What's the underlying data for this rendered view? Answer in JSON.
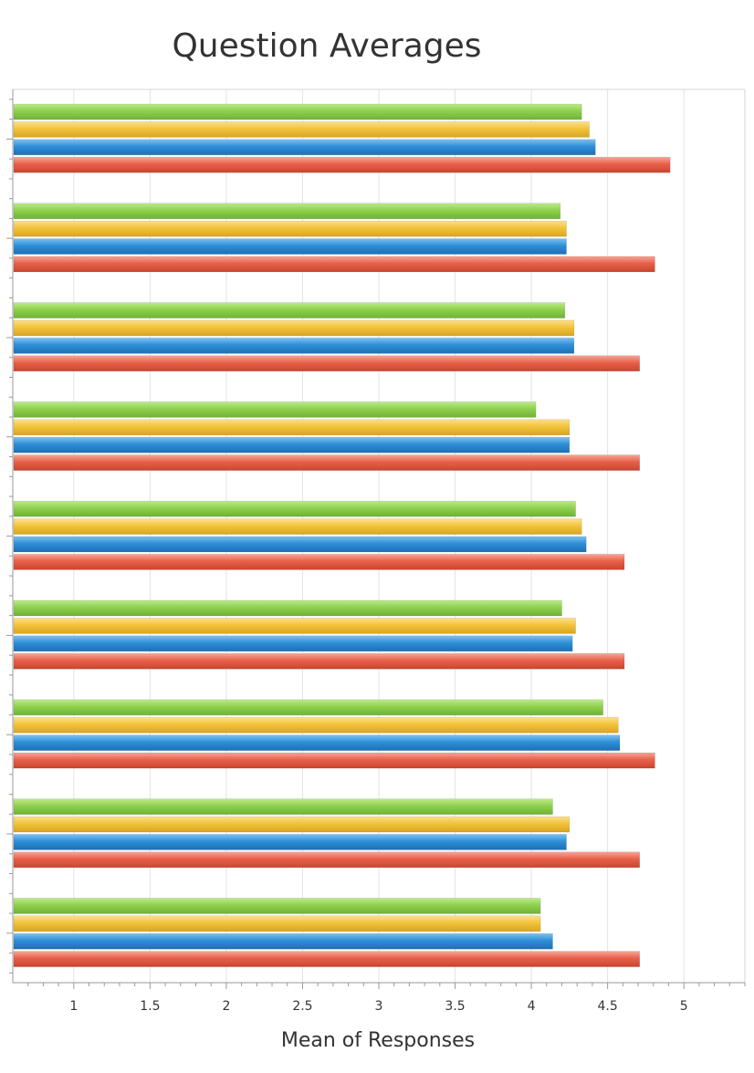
{
  "chart_data": {
    "type": "bar",
    "orientation": "horizontal",
    "title": "Question Averages",
    "xlabel": "Mean of Responses",
    "ylabel": "",
    "xlim": [
      0.6,
      5.4
    ],
    "x_ticks": [
      1,
      1.5,
      2,
      2.5,
      3,
      3.5,
      4,
      4.5,
      5
    ],
    "x_tick_labels": [
      "1",
      "1.5",
      "2",
      "2.5",
      "3",
      "3.5",
      "4",
      "4.5",
      "5"
    ],
    "grid": true,
    "legend": "none",
    "groups": 9,
    "series": [
      {
        "color": "#8fd04e",
        "values": [
          4.33,
          4.19,
          4.22,
          4.03,
          4.29,
          4.2,
          4.47,
          4.14,
          4.06
        ]
      },
      {
        "color": "#f2c33b",
        "values": [
          4.38,
          4.23,
          4.28,
          4.25,
          4.33,
          4.29,
          4.57,
          4.25,
          4.06
        ]
      },
      {
        "color": "#2f8fd8",
        "values": [
          4.42,
          4.23,
          4.28,
          4.25,
          4.36,
          4.27,
          4.58,
          4.23,
          4.14
        ]
      },
      {
        "color": "#e8604a",
        "values": [
          4.91,
          4.81,
          4.71,
          4.71,
          4.61,
          4.61,
          4.81,
          4.71,
          4.71
        ]
      }
    ]
  }
}
